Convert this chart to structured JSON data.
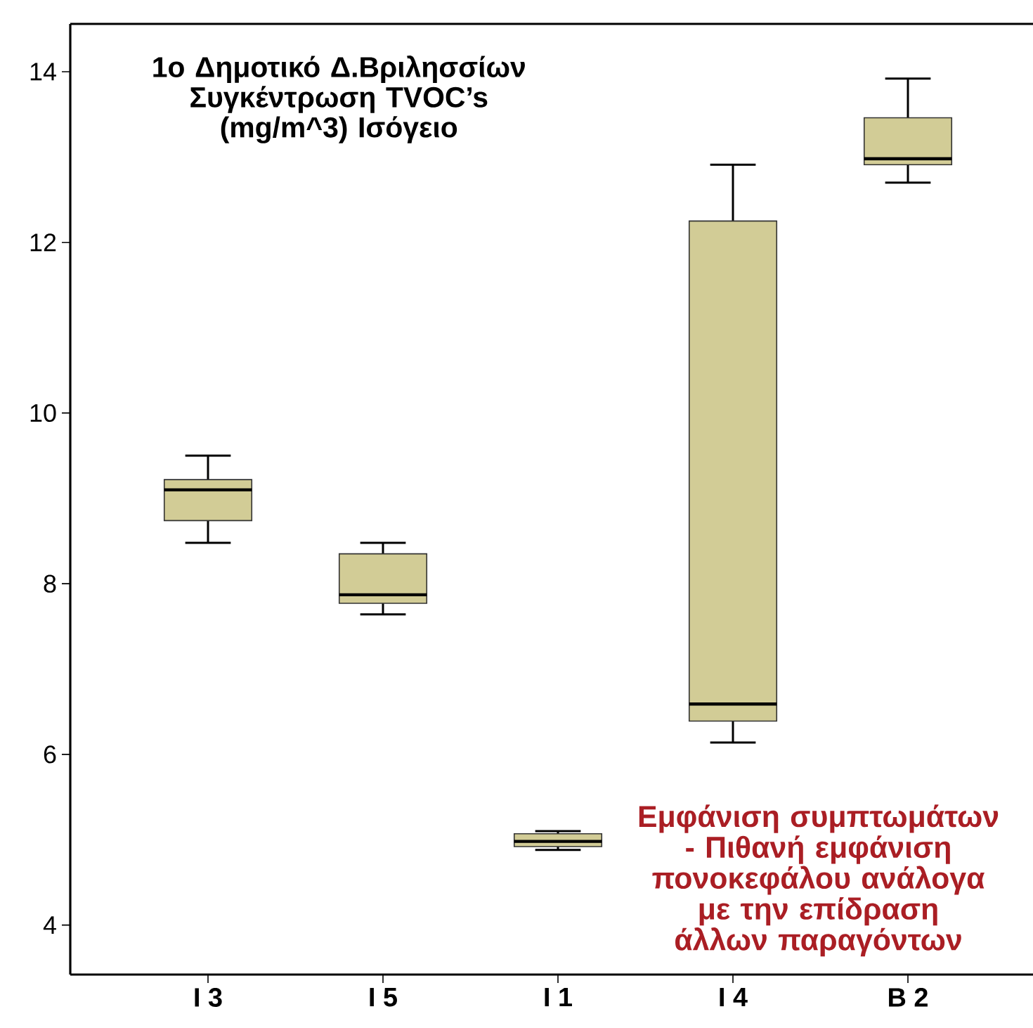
{
  "chart_data": {
    "type": "box",
    "title": "1ο Δημοτικό Δ.Βριλησσίων",
    "subtitle": "Συγκέντρωση TVOC’s (mg/m^3) Ισόγειο",
    "annotations": [
      "Εμφάνιση συμπτωμάτων - Πιθανή εμφάνιση πονοκεφάλου ανάλογα με την επίδραση άλλων παραγόντων"
    ],
    "categories": [
      "I 3",
      "I 5",
      "I 1",
      "I 4",
      "B 2"
    ],
    "boxes": [
      {
        "low": 8.48,
        "q1": 8.74,
        "median": 9.1,
        "q3": 9.22,
        "high": 9.5
      },
      {
        "low": 7.64,
        "q1": 7.77,
        "median": 7.87,
        "q3": 8.35,
        "high": 8.48
      },
      {
        "low": 4.88,
        "q1": 4.92,
        "median": 4.98,
        "q3": 5.07,
        "high": 5.1
      },
      {
        "low": 6.14,
        "q1": 6.39,
        "median": 6.59,
        "q3": 12.25,
        "high": 12.91
      },
      {
        "low": 12.7,
        "q1": 12.91,
        "median": 12.98,
        "q3": 13.46,
        "high": 13.92
      }
    ],
    "color": "#d2cc96",
    "ylim": [
      3.42,
      14.56
    ],
    "yticks": [
      4,
      6,
      8,
      10,
      12,
      14
    ]
  }
}
